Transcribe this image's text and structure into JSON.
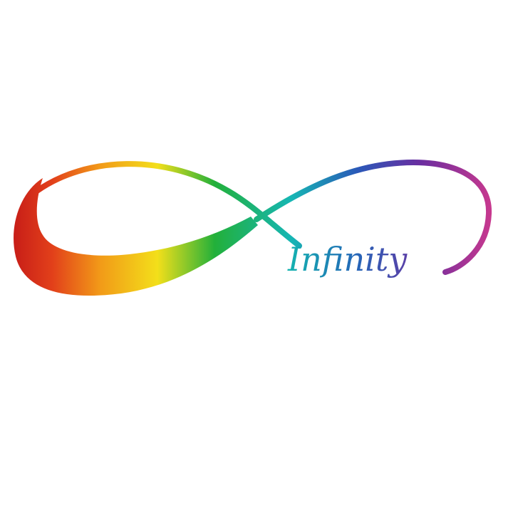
{
  "logo": {
    "word": "Infinity",
    "colors": {
      "red": "#d8281c",
      "orange": "#f08a18",
      "yellow": "#f3df1a",
      "green": "#22b03a",
      "teal": "#16b6b4",
      "blue": "#2a58b8",
      "purple": "#6a2ea0",
      "magenta": "#c0308c"
    }
  }
}
